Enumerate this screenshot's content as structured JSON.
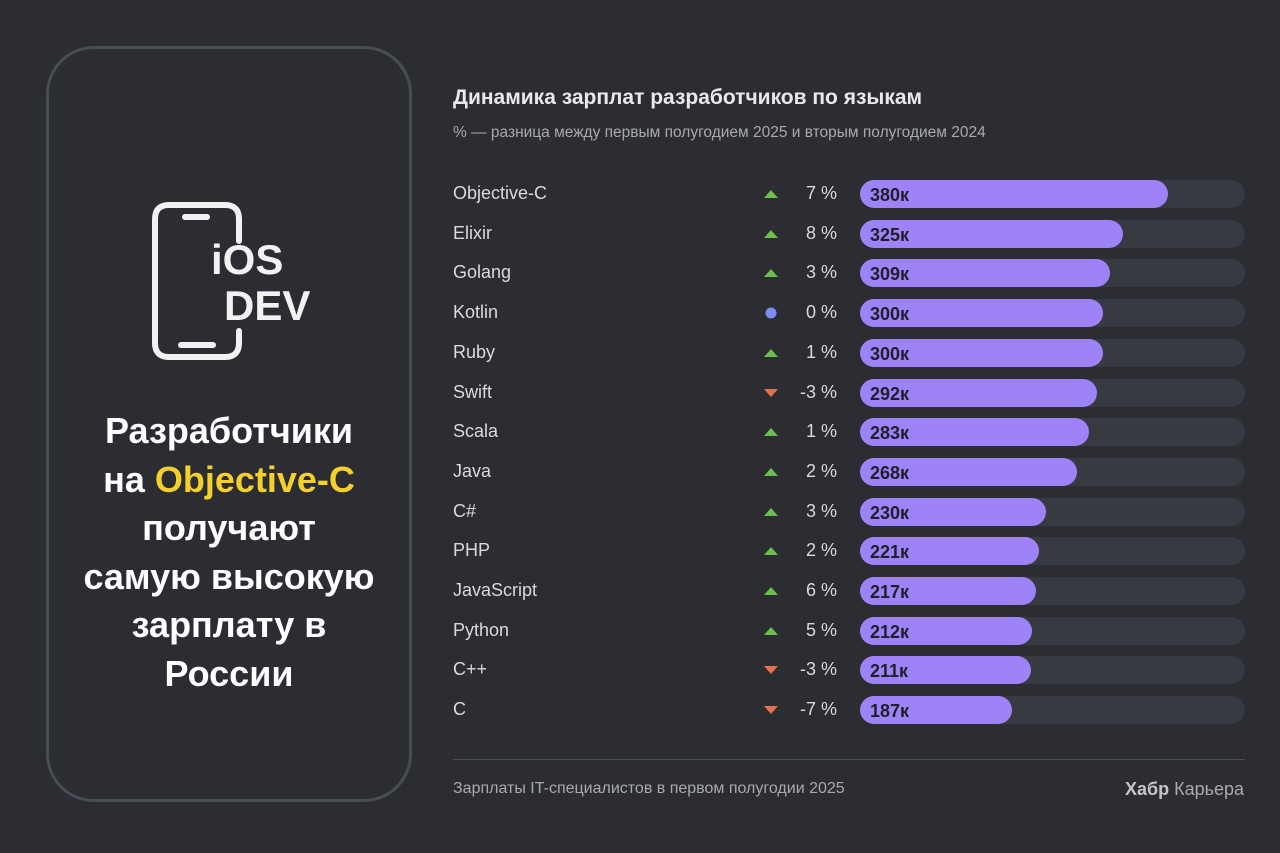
{
  "card": {
    "logo_line1": "iOS",
    "logo_line2": "DEV",
    "headline_part1": "Разработчики",
    "headline_part2": "на ",
    "headline_accent": "Objective-C",
    "headline_part3": "получают",
    "headline_part4": "самую высокую",
    "headline_part5": "зарплату в",
    "headline_part6": "России",
    "accent_color": "#f5cf2a"
  },
  "chart_data": {
    "type": "bar",
    "title": "Динамика зарплат разработчиков по языкам",
    "subtitle": "% — разница между первым полугодием 2025 и вторым полугодием 2024",
    "categories": [
      "Objective-C",
      "Elixir",
      "Golang",
      "Kotlin",
      "Ruby",
      "Swift",
      "Scala",
      "Java",
      "C#",
      "PHP",
      "JavaScript",
      "Python",
      "C++",
      "C"
    ],
    "values": [
      380,
      325,
      309,
      300,
      300,
      292,
      283,
      268,
      230,
      221,
      217,
      212,
      211,
      187
    ],
    "value_labels": [
      "380к",
      "325к",
      "309к",
      "300к",
      "300к",
      "292к",
      "283к",
      "268к",
      "230к",
      "221к",
      "217к",
      "212к",
      "211к",
      "187к"
    ],
    "change_labels": [
      "7 %",
      "8 %",
      "3 %",
      "0 %",
      "1 %",
      "-3 %",
      "1 %",
      "2 %",
      "3 %",
      "2 %",
      "6 %",
      "5 %",
      "-3 %",
      "-7 %"
    ],
    "trend": [
      "up",
      "up",
      "up",
      "flat",
      "up",
      "down",
      "up",
      "up",
      "up",
      "up",
      "up",
      "up",
      "down",
      "down"
    ],
    "xlim": [
      0,
      475
    ],
    "bar_color": "#9d83f7",
    "track_color": "#383a41",
    "trend_colors": {
      "up": "#6cc04a",
      "down": "#e8704f",
      "flat": "#7b8cf0"
    }
  },
  "footer": {
    "source": "Зарплаты IT-специалистов в первом полугодии 2025",
    "brand_bold": "Хабр",
    "brand_rest": " Карьера"
  }
}
